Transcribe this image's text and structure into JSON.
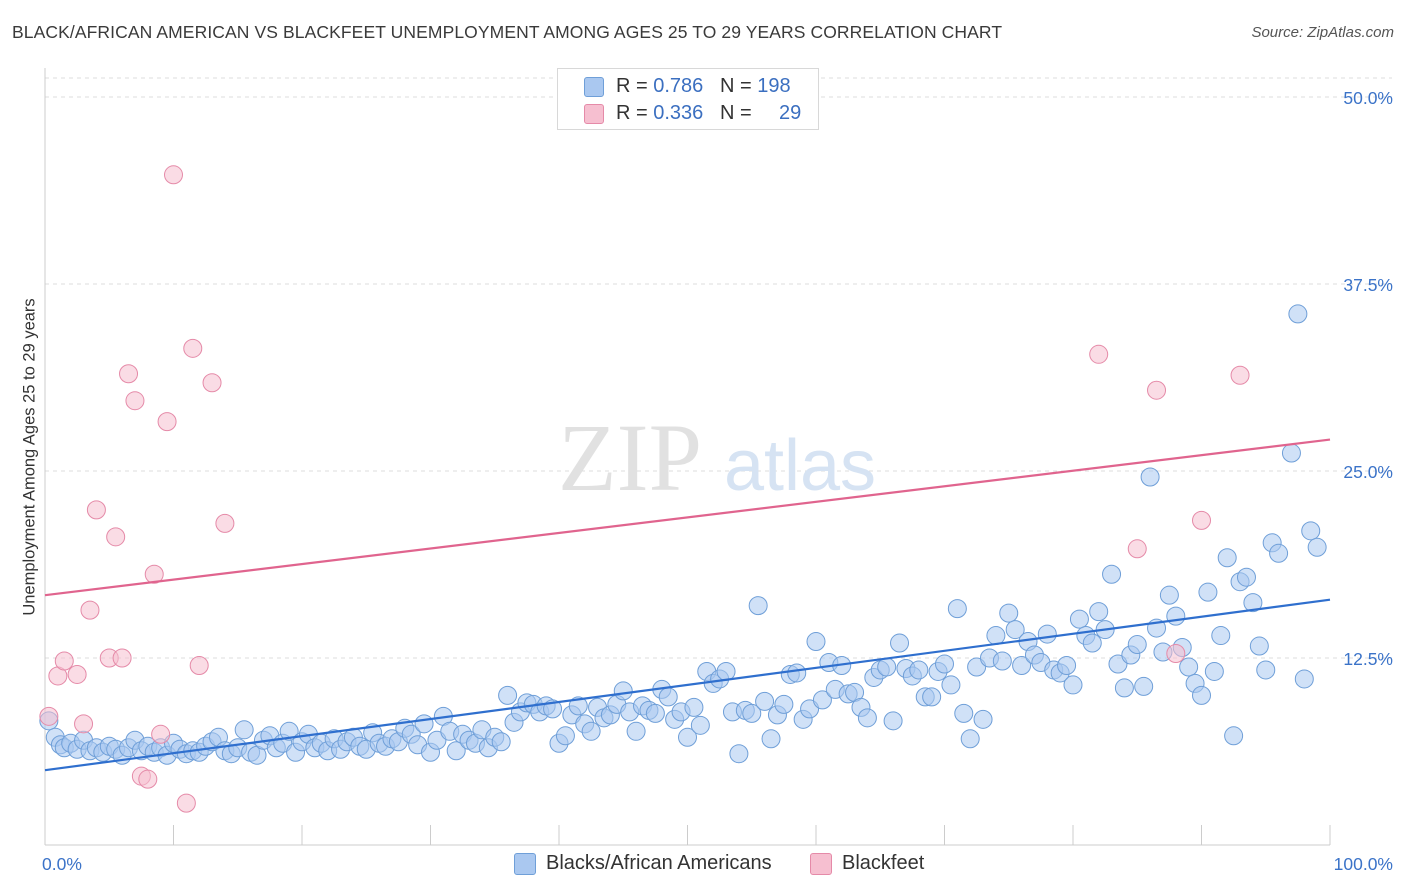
{
  "title": "BLACK/AFRICAN AMERICAN VS BLACKFEET UNEMPLOYMENT AMONG AGES 25 TO 29 YEARS CORRELATION CHART",
  "source": "Source: ZipAtlas.com",
  "watermark": {
    "zip": "ZIP",
    "atlas": "atlas"
  },
  "legend": {
    "series1": {
      "r_label": "R = ",
      "r_value": "0.786",
      "n_label": "N = ",
      "n_value": "198"
    },
    "series2": {
      "r_label": "R = ",
      "r_value": "0.336",
      "n_label": "N = ",
      "n_value": "29"
    }
  },
  "colors": {
    "blue_fill": "#aac8f0",
    "blue_stroke": "#6f9fd8",
    "blue_line": "#2f6fce",
    "pink_fill": "#f6bfd0",
    "pink_stroke": "#e58aa8",
    "pink_line": "#e0648e",
    "tick_label": "#3b73c8"
  },
  "chart_data": {
    "type": "scatter",
    "title": "BLACK/AFRICAN AMERICAN VS BLACKFEET UNEMPLOYMENT AMONG AGES 25 TO 29 YEARS CORRELATION CHART",
    "xlabel": "",
    "ylabel": "Unemployment Among Ages 25 to 29 years",
    "xlim": [
      0,
      100
    ],
    "ylim": [
      0,
      50
    ],
    "x_tick_labels": [
      "0.0%",
      "100.0%"
    ],
    "y_ticks": [
      12.5,
      25.0,
      37.5,
      50.0
    ],
    "y_tick_labels": [
      "12.5%",
      "25.0%",
      "37.5%",
      "50.0%"
    ],
    "grid": true,
    "legend_position": "top-center",
    "series": [
      {
        "name": "Blacks/African Americans",
        "trend": [
          [
            0,
            5.0
          ],
          [
            100,
            16.4
          ]
        ],
        "points": [
          [
            0.3,
            8.3
          ],
          [
            0.8,
            7.2
          ],
          [
            1.2,
            6.7
          ],
          [
            1.5,
            6.5
          ],
          [
            2.0,
            6.8
          ],
          [
            2.5,
            6.4
          ],
          [
            3.0,
            7.0
          ],
          [
            3.5,
            6.3
          ],
          [
            4.0,
            6.5
          ],
          [
            4.5,
            6.2
          ],
          [
            5.0,
            6.6
          ],
          [
            5.5,
            6.4
          ],
          [
            6.0,
            6.0
          ],
          [
            6.5,
            6.5
          ],
          [
            7.0,
            7.0
          ],
          [
            7.5,
            6.3
          ],
          [
            8.0,
            6.6
          ],
          [
            8.5,
            6.2
          ],
          [
            9.0,
            6.5
          ],
          [
            9.5,
            6.0
          ],
          [
            10.0,
            6.8
          ],
          [
            10.5,
            6.4
          ],
          [
            11.0,
            6.1
          ],
          [
            11.5,
            6.3
          ],
          [
            12.0,
            6.2
          ],
          [
            12.5,
            6.6
          ],
          [
            13.0,
            6.9
          ],
          [
            13.5,
            7.2
          ],
          [
            14.0,
            6.3
          ],
          [
            14.5,
            6.1
          ],
          [
            15.0,
            6.5
          ],
          [
            15.5,
            7.7
          ],
          [
            16.0,
            6.2
          ],
          [
            16.5,
            6.0
          ],
          [
            17.0,
            7.0
          ],
          [
            17.5,
            7.3
          ],
          [
            18.0,
            6.5
          ],
          [
            18.5,
            6.8
          ],
          [
            19.0,
            7.6
          ],
          [
            19.5,
            6.2
          ],
          [
            20.0,
            6.9
          ],
          [
            20.5,
            7.4
          ],
          [
            21.0,
            6.5
          ],
          [
            21.5,
            6.8
          ],
          [
            22.0,
            6.3
          ],
          [
            22.5,
            7.1
          ],
          [
            23.0,
            6.4
          ],
          [
            23.5,
            6.9
          ],
          [
            24.0,
            7.2
          ],
          [
            24.5,
            6.6
          ],
          [
            25.0,
            6.4
          ],
          [
            25.5,
            7.5
          ],
          [
            26.0,
            6.8
          ],
          [
            26.5,
            6.6
          ],
          [
            27.0,
            7.1
          ],
          [
            27.5,
            6.9
          ],
          [
            28.0,
            7.8
          ],
          [
            28.5,
            7.4
          ],
          [
            29.0,
            6.7
          ],
          [
            29.5,
            8.1
          ],
          [
            30.0,
            6.2
          ],
          [
            30.5,
            7.0
          ],
          [
            31.0,
            8.6
          ],
          [
            31.5,
            7.6
          ],
          [
            32.0,
            6.3
          ],
          [
            32.5,
            7.4
          ],
          [
            33.0,
            7.0
          ],
          [
            33.5,
            6.8
          ],
          [
            34.0,
            7.7
          ],
          [
            34.5,
            6.5
          ],
          [
            35.0,
            7.2
          ],
          [
            35.5,
            6.9
          ],
          [
            36.0,
            10.0
          ],
          [
            36.5,
            8.2
          ],
          [
            37.0,
            8.9
          ],
          [
            37.5,
            9.5
          ],
          [
            38.0,
            9.4
          ],
          [
            38.5,
            8.9
          ],
          [
            39.0,
            9.3
          ],
          [
            39.5,
            9.1
          ],
          [
            40.0,
            6.8
          ],
          [
            40.5,
            7.3
          ],
          [
            41.0,
            8.7
          ],
          [
            41.5,
            9.3
          ],
          [
            42.0,
            8.1
          ],
          [
            42.5,
            7.6
          ],
          [
            43.0,
            9.2
          ],
          [
            43.5,
            8.5
          ],
          [
            44.0,
            8.7
          ],
          [
            44.5,
            9.4
          ],
          [
            45.0,
            10.3
          ],
          [
            45.5,
            8.9
          ],
          [
            46.0,
            7.6
          ],
          [
            46.5,
            9.3
          ],
          [
            47.0,
            9.0
          ],
          [
            47.5,
            8.8
          ],
          [
            48.0,
            10.4
          ],
          [
            48.5,
            9.9
          ],
          [
            49.0,
            8.4
          ],
          [
            49.5,
            8.9
          ],
          [
            50.0,
            7.2
          ],
          [
            50.5,
            9.2
          ],
          [
            51.0,
            8.0
          ],
          [
            51.5,
            11.6
          ],
          [
            52.0,
            10.8
          ],
          [
            52.5,
            11.1
          ],
          [
            53.0,
            11.6
          ],
          [
            53.5,
            8.9
          ],
          [
            54.0,
            6.1
          ],
          [
            54.5,
            9.0
          ],
          [
            55.0,
            8.8
          ],
          [
            55.5,
            16.0
          ],
          [
            56.0,
            9.6
          ],
          [
            56.5,
            7.1
          ],
          [
            57.0,
            8.7
          ],
          [
            57.5,
            9.4
          ],
          [
            58.0,
            11.4
          ],
          [
            58.5,
            11.5
          ],
          [
            59.0,
            8.4
          ],
          [
            59.5,
            9.1
          ],
          [
            60.0,
            13.6
          ],
          [
            60.5,
            9.7
          ],
          [
            61.0,
            12.2
          ],
          [
            61.5,
            10.4
          ],
          [
            62.0,
            12.0
          ],
          [
            62.5,
            10.1
          ],
          [
            63.0,
            10.2
          ],
          [
            63.5,
            9.2
          ],
          [
            64.0,
            8.5
          ],
          [
            64.5,
            11.2
          ],
          [
            65.0,
            11.7
          ],
          [
            65.5,
            11.9
          ],
          [
            66.0,
            8.3
          ],
          [
            66.5,
            13.5
          ],
          [
            67.0,
            11.8
          ],
          [
            67.5,
            11.3
          ],
          [
            68.0,
            11.7
          ],
          [
            68.5,
            9.9
          ],
          [
            69.0,
            9.9
          ],
          [
            69.5,
            11.6
          ],
          [
            70.0,
            12.1
          ],
          [
            70.5,
            10.7
          ],
          [
            71.0,
            15.8
          ],
          [
            71.5,
            8.8
          ],
          [
            72.0,
            7.1
          ],
          [
            72.5,
            11.9
          ],
          [
            73.0,
            8.4
          ],
          [
            73.5,
            12.5
          ],
          [
            74.0,
            14.0
          ],
          [
            74.5,
            12.3
          ],
          [
            75.0,
            15.5
          ],
          [
            75.5,
            14.4
          ],
          [
            76.0,
            12.0
          ],
          [
            76.5,
            13.6
          ],
          [
            77.0,
            12.7
          ],
          [
            77.5,
            12.2
          ],
          [
            78.0,
            14.1
          ],
          [
            78.5,
            11.7
          ],
          [
            79.0,
            11.5
          ],
          [
            79.5,
            12.0
          ],
          [
            80.0,
            10.7
          ],
          [
            80.5,
            15.1
          ],
          [
            81.0,
            14.0
          ],
          [
            81.5,
            13.5
          ],
          [
            82.0,
            15.6
          ],
          [
            82.5,
            14.4
          ],
          [
            83.0,
            18.1
          ],
          [
            83.5,
            12.1
          ],
          [
            84.0,
            10.5
          ],
          [
            84.5,
            12.7
          ],
          [
            85.0,
            13.4
          ],
          [
            85.5,
            10.6
          ],
          [
            86.0,
            24.6
          ],
          [
            86.5,
            14.5
          ],
          [
            87.0,
            12.9
          ],
          [
            87.5,
            16.7
          ],
          [
            88.0,
            15.3
          ],
          [
            88.5,
            13.2
          ],
          [
            89.0,
            11.9
          ],
          [
            89.5,
            10.8
          ],
          [
            90.0,
            10.0
          ],
          [
            90.5,
            16.9
          ],
          [
            91.0,
            11.6
          ],
          [
            91.5,
            14.0
          ],
          [
            92.0,
            19.2
          ],
          [
            92.5,
            7.3
          ],
          [
            93.0,
            17.6
          ],
          [
            93.5,
            17.9
          ],
          [
            94.0,
            16.2
          ],
          [
            94.5,
            13.3
          ],
          [
            95.0,
            11.7
          ],
          [
            95.5,
            20.2
          ],
          [
            96.0,
            19.5
          ],
          [
            97.0,
            26.2
          ],
          [
            97.5,
            35.5
          ],
          [
            98.0,
            11.1
          ],
          [
            98.5,
            21.0
          ],
          [
            99.0,
            19.9
          ]
        ]
      },
      {
        "name": "Blackfeet",
        "trend": [
          [
            0,
            16.7
          ],
          [
            100,
            27.1
          ]
        ],
        "points": [
          [
            0.3,
            8.6
          ],
          [
            1.0,
            11.3
          ],
          [
            1.5,
            12.3
          ],
          [
            2.5,
            11.4
          ],
          [
            3.0,
            8.1
          ],
          [
            3.5,
            15.7
          ],
          [
            4.0,
            22.4
          ],
          [
            5.0,
            12.5
          ],
          [
            5.5,
            20.6
          ],
          [
            6.0,
            12.5
          ],
          [
            6.5,
            31.5
          ],
          [
            7.0,
            29.7
          ],
          [
            7.5,
            4.6
          ],
          [
            8.0,
            4.4
          ],
          [
            8.5,
            18.1
          ],
          [
            9.0,
            7.4
          ],
          [
            9.5,
            28.3
          ],
          [
            10.0,
            44.8
          ],
          [
            11.0,
            2.8
          ],
          [
            11.5,
            33.2
          ],
          [
            12.0,
            12.0
          ],
          [
            13.0,
            30.9
          ],
          [
            14.0,
            21.5
          ],
          [
            82.0,
            32.8
          ],
          [
            85.0,
            19.8
          ],
          [
            86.5,
            30.4
          ],
          [
            88.0,
            12.8
          ],
          [
            90.0,
            21.7
          ],
          [
            93.0,
            31.4
          ]
        ]
      }
    ]
  },
  "bottom_legend": {
    "series1": "Blacks/African Americans",
    "series2": "Blackfeet"
  }
}
